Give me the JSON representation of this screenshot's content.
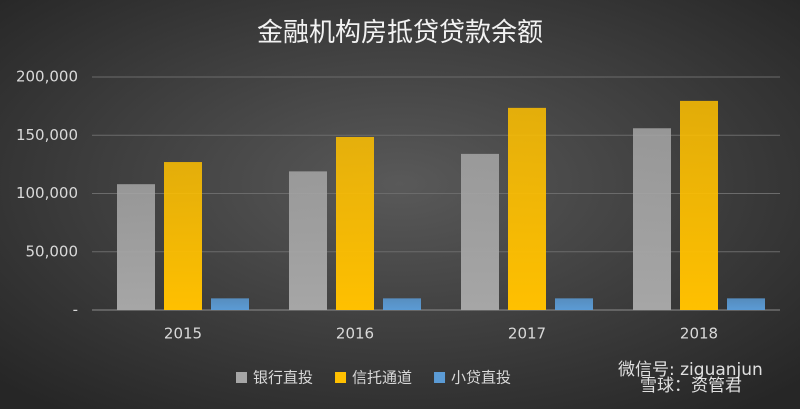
{
  "chart_data": {
    "type": "bar",
    "title": "金融机构房抵贷贷款余额",
    "categories": [
      "2015",
      "2016",
      "2017",
      "2018"
    ],
    "series": [
      {
        "name": "银行直投",
        "color": "#a6a6a6",
        "values": [
          108000,
          119000,
          134000,
          156000
        ]
      },
      {
        "name": "信托通道",
        "color": "#ffc000",
        "values": [
          127000,
          148500,
          173500,
          179500
        ]
      },
      {
        "name": "小贷直投",
        "color": "#5b9bd5",
        "values": [
          10000,
          10000,
          10000,
          10000
        ]
      }
    ],
    "ylim": [
      0,
      200000
    ],
    "yticks": [
      {
        "value": 0,
        "label": "-"
      },
      {
        "value": 50000,
        "label": "50,000"
      },
      {
        "value": 100000,
        "label": "100,000"
      },
      {
        "value": 150000,
        "label": "150,000"
      },
      {
        "value": 200000,
        "label": "200,000"
      }
    ],
    "grid": true,
    "legend": "bottom",
    "annotations": [
      "微信号: ziguanjun",
      "雪球：资管君"
    ]
  }
}
